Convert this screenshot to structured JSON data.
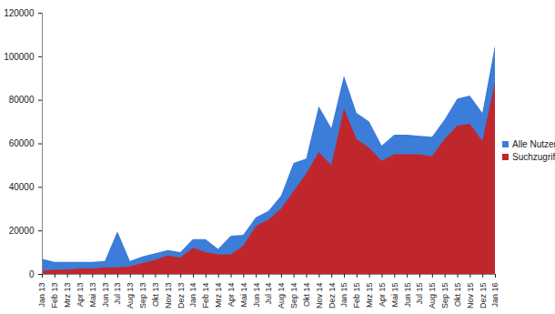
{
  "chart_data": {
    "type": "area",
    "categories": [
      "Jan 13",
      "Feb 13",
      "Mrz 13",
      "Apr 13",
      "Mai 13",
      "Jun 13",
      "Jul 13",
      "Aug 13",
      "Sep 13",
      "Okt 13",
      "Nov 13",
      "Dez 13",
      "Jan 14",
      "Feb 14",
      "Mrz 14",
      "Apr 14",
      "Mai 14",
      "Jun 14",
      "Jul 14",
      "Aug 14",
      "Sep 14",
      "Okt 14",
      "Nov 14",
      "Dez 14",
      "Jan 15",
      "Feb 15",
      "Mrz 15",
      "Apr 15",
      "Mai 15",
      "Jun 15",
      "Jul 15",
      "Aug 15",
      "Sep 15",
      "Okt 15",
      "Nov 15",
      "Dez 15",
      "Jan 16"
    ],
    "series": [
      {
        "name": "Alle Nutzer",
        "color": "#3b7dd8",
        "values": [
          7000,
          5500,
          5500,
          5500,
          5500,
          6000,
          19500,
          6000,
          8000,
          9500,
          11000,
          10000,
          16000,
          16000,
          11500,
          17500,
          18000,
          26000,
          29000,
          36000,
          51000,
          53000,
          77000,
          67000,
          91000,
          74000,
          70000,
          59000,
          64000,
          64000,
          63500,
          63000,
          71000,
          80500,
          82000,
          74000,
          105000
        ]
      },
      {
        "name": "Suchzugriffe",
        "color": "#c0272d",
        "values": [
          1500,
          2000,
          2000,
          2500,
          2500,
          3000,
          3000,
          3500,
          5000,
          6500,
          8500,
          7500,
          12000,
          10000,
          9000,
          9000,
          13000,
          22000,
          25000,
          30000,
          38000,
          46000,
          56000,
          50000,
          76000,
          62000,
          58000,
          52000,
          55000,
          55000,
          55000,
          54000,
          62000,
          68000,
          69000,
          61000,
          88000
        ]
      }
    ],
    "ylim": [
      0,
      120000
    ],
    "yticks": [
      0,
      20000,
      40000,
      60000,
      80000,
      100000,
      120000
    ],
    "stacked": false,
    "grid": false,
    "legend": "right"
  }
}
